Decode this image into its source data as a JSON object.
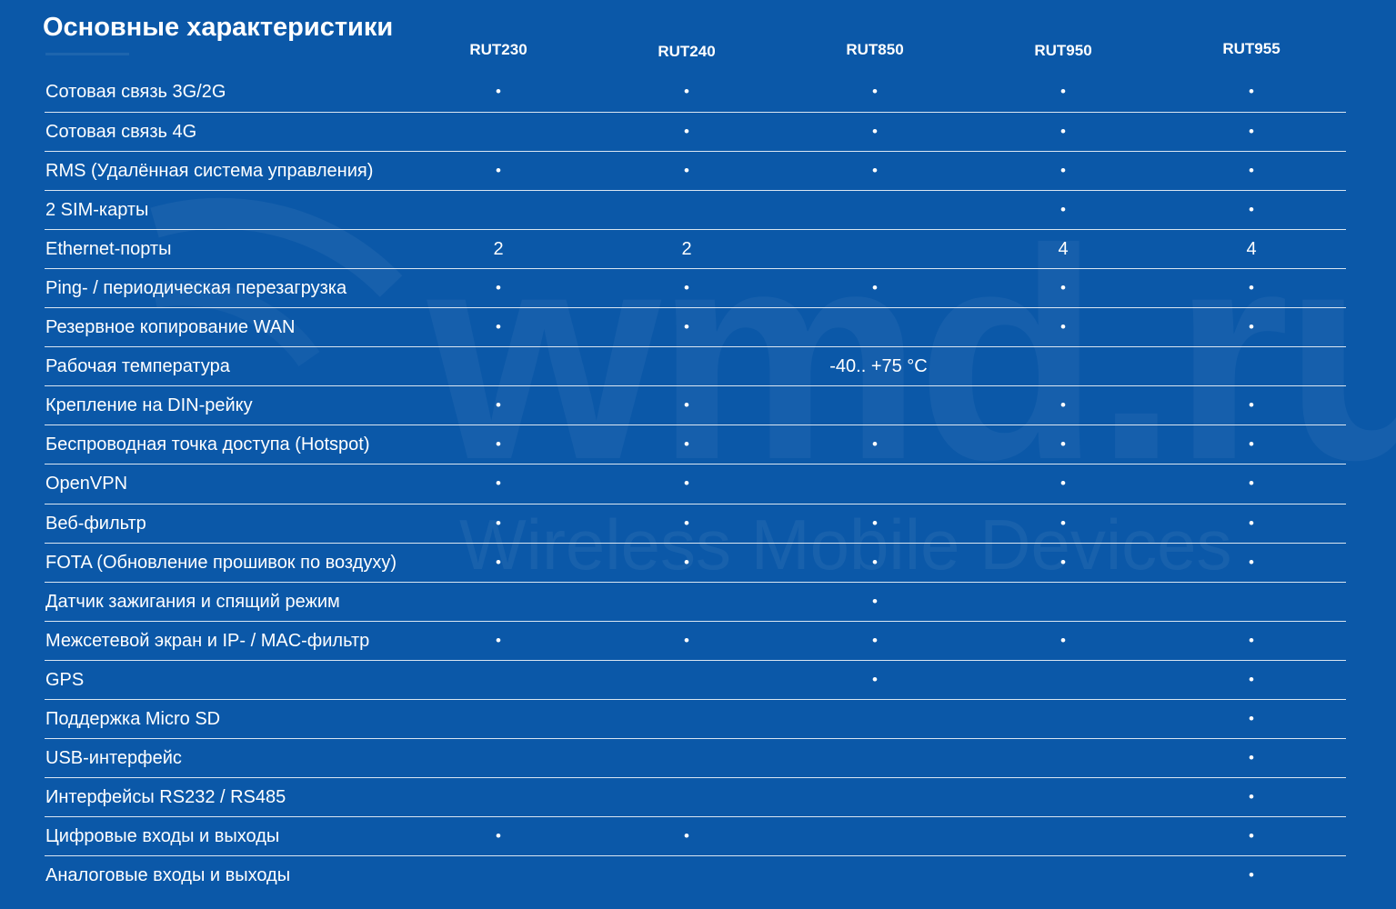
{
  "title": "Основные характеристики",
  "watermark": {
    "brand": "wmd.ru",
    "tagline": "Wireless Mobile Devices"
  },
  "columns": [
    "RUT230",
    "RUT240",
    "RUT850",
    "RUT950",
    "RUT955"
  ],
  "rows": [
    {
      "label": "Сотовая связь 3G/2G",
      "values": [
        "•",
        "•",
        "•",
        "•",
        "•"
      ]
    },
    {
      "label": "Сотовая связь 4G",
      "values": [
        "",
        "•",
        "•",
        "•",
        "•"
      ]
    },
    {
      "label": "RMS (Удалённая система управления)",
      "values": [
        "•",
        "•",
        "•",
        "•",
        "•"
      ]
    },
    {
      "label": "2 SIM-карты",
      "values": [
        "",
        "",
        "",
        "•",
        "•"
      ]
    },
    {
      "label": "Ethernet-порты",
      "values": [
        "2",
        "2",
        "",
        "4",
        "4"
      ]
    },
    {
      "label": "Ping- / периодическая перезагрузка",
      "values": [
        "•",
        "•",
        "•",
        "•",
        "•"
      ]
    },
    {
      "label": "Резервное копирование WAN",
      "values": [
        "•",
        "•",
        "",
        "•",
        "•"
      ]
    },
    {
      "label": "Рабочая температура",
      "values": [],
      "span_value": "-40.. +75 °C"
    },
    {
      "label": "Крепление на DIN-рейку",
      "values": [
        "•",
        "•",
        "",
        "•",
        "•"
      ]
    },
    {
      "label": "Беспроводная точка доступа (Hotspot)",
      "values": [
        "•",
        "•",
        "•",
        "•",
        "•"
      ]
    },
    {
      "label": "OpenVPN",
      "values": [
        "•",
        "•",
        "",
        "•",
        "•"
      ]
    },
    {
      "label": "Веб-фильтр",
      "values": [
        "•",
        "•",
        "•",
        "•",
        "•"
      ]
    },
    {
      "label": "FOTA (Обновление прошивок по воздуху)",
      "values": [
        "•",
        "•",
        "•",
        "•",
        "•"
      ]
    },
    {
      "label": "Датчик зажигания и спящий режим",
      "values": [
        "",
        "",
        "•",
        "",
        ""
      ]
    },
    {
      "label": "Межсетевой экран и IP- / MAC-фильтр",
      "values": [
        "•",
        "•",
        "•",
        "•",
        "•"
      ]
    },
    {
      "label": "GPS",
      "values": [
        "",
        "",
        "•",
        "",
        "•"
      ]
    },
    {
      "label": "Поддержка Micro SD",
      "values": [
        "",
        "",
        "",
        "",
        "•"
      ]
    },
    {
      "label": "USB-интерфейс",
      "values": [
        "",
        "",
        "",
        "",
        "•"
      ]
    },
    {
      "label": "Интерфейсы RS232 / RS485",
      "values": [
        "",
        "",
        "",
        "",
        "•"
      ]
    },
    {
      "label": "Цифровые входы и выходы",
      "values": [
        "•",
        "•",
        "",
        "",
        "•"
      ]
    },
    {
      "label": "Аналоговые входы и выходы",
      "values": [
        "",
        "",
        "",
        "",
        "•"
      ]
    }
  ]
}
